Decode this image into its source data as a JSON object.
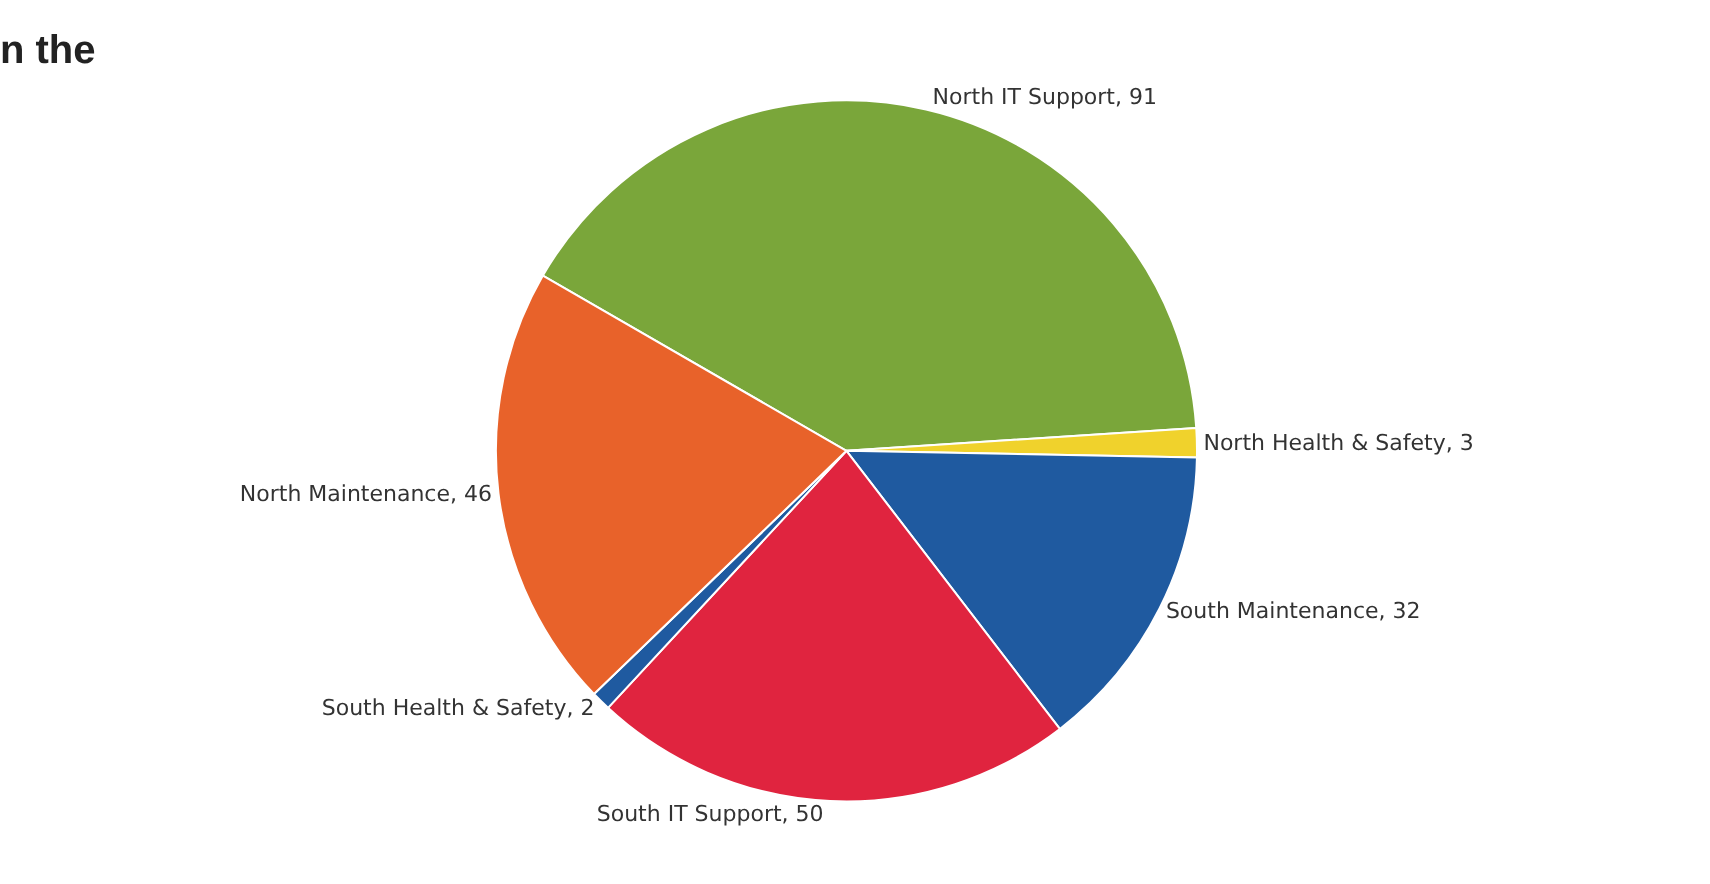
{
  "chart_data": {
    "type": "pie",
    "title": "n the",
    "categories": [
      "North IT Support, 91",
      "North Health & Safety, 3",
      "South Maintenance, 32",
      "South IT Support, 50",
      "South Health & Safety, 2",
      "North Maintenance, 46"
    ],
    "values": [
      91,
      3,
      32,
      50,
      2,
      46
    ],
    "colors": [
      "#7aa63a",
      "#f0d22c",
      "#1f5aa0",
      "#e0243f",
      "#1f5aa0",
      "#e8622a"
    ],
    "legend": false
  }
}
